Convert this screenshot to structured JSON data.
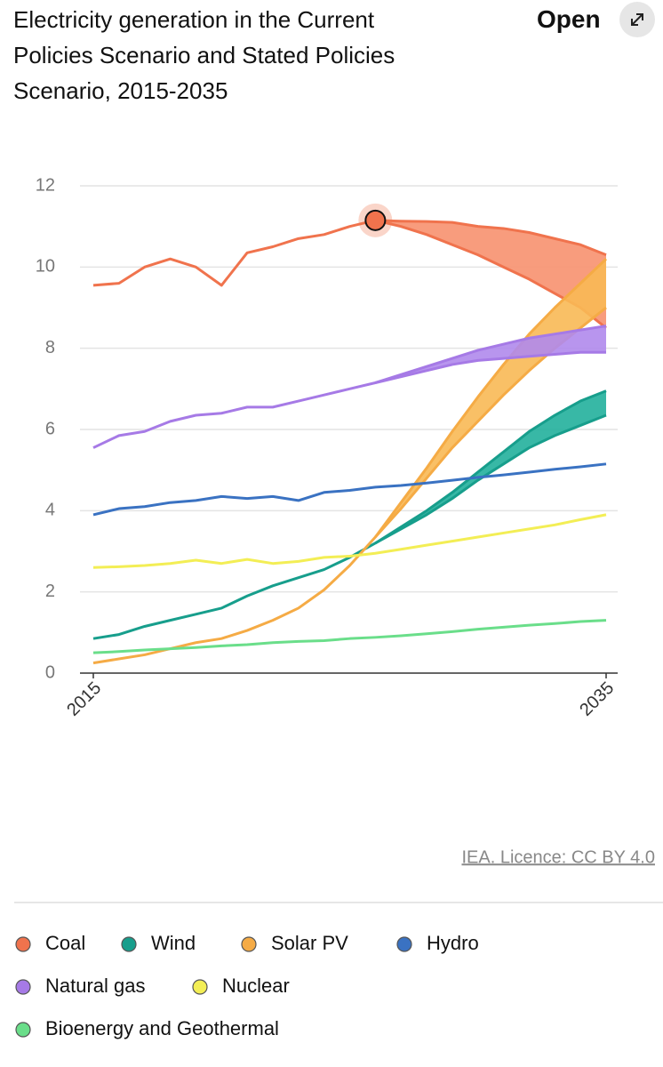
{
  "header": {
    "open": "Open"
  },
  "chart_data": {
    "type": "band-line",
    "title": "Electricity generation in the Current Policies Scenario and Stated Policies Scenario, 2015-2035",
    "source": "IEA. Licence: CC BY 4.0",
    "x": [
      2015,
      2016,
      2017,
      2018,
      2019,
      2020,
      2021,
      2022,
      2023,
      2024,
      2025,
      2026,
      2027,
      2028,
      2029,
      2030,
      2031,
      2032,
      2033,
      2034,
      2035
    ],
    "xlim": [
      2015,
      2035
    ],
    "xticks": [
      2015,
      2035
    ],
    "ylim": [
      0,
      12
    ],
    "yticks": [
      0,
      2,
      4,
      6,
      8,
      10,
      12
    ],
    "grid": true,
    "highlight": {
      "series": 0,
      "index": 11
    },
    "series": [
      {
        "name": "Coal",
        "color": "#f0734d",
        "fill": "#f7916f",
        "values": [
          9.55,
          9.6,
          10.0,
          10.2,
          10.0,
          9.55,
          10.35,
          10.5,
          10.7,
          10.8,
          11.0,
          11.15,
          11.13,
          11.12,
          11.1,
          11.0,
          10.95,
          10.85,
          10.7,
          10.55,
          10.3
        ],
        "band_values": [
          null,
          null,
          null,
          null,
          null,
          null,
          null,
          null,
          null,
          null,
          null,
          11.15,
          11.0,
          10.8,
          10.55,
          10.3,
          10.0,
          9.7,
          9.35,
          9.0,
          8.5
        ]
      },
      {
        "name": "Wind",
        "color": "#179e8c",
        "fill": "#22b09c",
        "values": [
          0.85,
          0.95,
          1.15,
          1.3,
          1.45,
          1.6,
          1.9,
          2.15,
          2.35,
          2.55,
          2.85,
          3.2,
          3.6,
          4.0,
          4.45,
          4.95,
          5.45,
          5.95,
          6.35,
          6.7,
          6.95
        ],
        "band_values": [
          null,
          null,
          null,
          null,
          null,
          null,
          null,
          null,
          null,
          null,
          null,
          3.2,
          3.55,
          3.9,
          4.3,
          4.75,
          5.15,
          5.55,
          5.85,
          6.1,
          6.35
        ]
      },
      {
        "name": "Solar PV",
        "color": "#f5ab45",
        "fill": "#f8b955",
        "values": [
          0.25,
          0.35,
          0.45,
          0.6,
          0.75,
          0.85,
          1.05,
          1.3,
          1.6,
          2.05,
          2.65,
          3.35,
          4.2,
          5.05,
          5.95,
          6.8,
          7.6,
          8.35,
          9.0,
          9.6,
          10.2
        ],
        "band_values": [
          null,
          null,
          null,
          null,
          null,
          null,
          null,
          null,
          null,
          null,
          null,
          3.35,
          4.05,
          4.8,
          5.55,
          6.2,
          6.85,
          7.45,
          8.0,
          8.5,
          9.0
        ]
      },
      {
        "name": "Hydro",
        "color": "#3a72c2",
        "fill": "#3a72c2",
        "values": [
          3.9,
          4.05,
          4.1,
          4.2,
          4.25,
          4.35,
          4.3,
          4.35,
          4.25,
          4.45,
          4.5,
          4.58,
          4.62,
          4.68,
          4.75,
          4.82,
          4.88,
          4.95,
          5.02,
          5.08,
          5.15
        ]
      },
      {
        "name": "Natural gas",
        "color": "#a67ae6",
        "fill": "#b08aec",
        "values": [
          5.55,
          5.85,
          5.95,
          6.2,
          6.35,
          6.4,
          6.55,
          6.55,
          6.7,
          6.85,
          7.0,
          7.15,
          7.35,
          7.55,
          7.75,
          7.95,
          8.1,
          8.25,
          8.35,
          8.45,
          8.55
        ],
        "band_values": [
          null,
          null,
          null,
          null,
          null,
          null,
          null,
          null,
          null,
          null,
          null,
          7.15,
          7.3,
          7.45,
          7.6,
          7.7,
          7.75,
          7.8,
          7.85,
          7.9,
          7.9
        ]
      },
      {
        "name": "Nuclear",
        "color": "#f3ee55",
        "fill": "#f3ee55",
        "values": [
          2.6,
          2.62,
          2.65,
          2.7,
          2.78,
          2.7,
          2.8,
          2.7,
          2.75,
          2.85,
          2.88,
          2.95,
          3.05,
          3.15,
          3.25,
          3.35,
          3.45,
          3.55,
          3.65,
          3.78,
          3.9
        ]
      },
      {
        "name": "Bioenergy and Geothermal",
        "color": "#6ade8a",
        "fill": "#6ade8a",
        "values": [
          0.5,
          0.53,
          0.57,
          0.6,
          0.63,
          0.67,
          0.7,
          0.75,
          0.78,
          0.8,
          0.85,
          0.88,
          0.92,
          0.97,
          1.02,
          1.08,
          1.13,
          1.18,
          1.22,
          1.27,
          1.3
        ]
      }
    ]
  }
}
